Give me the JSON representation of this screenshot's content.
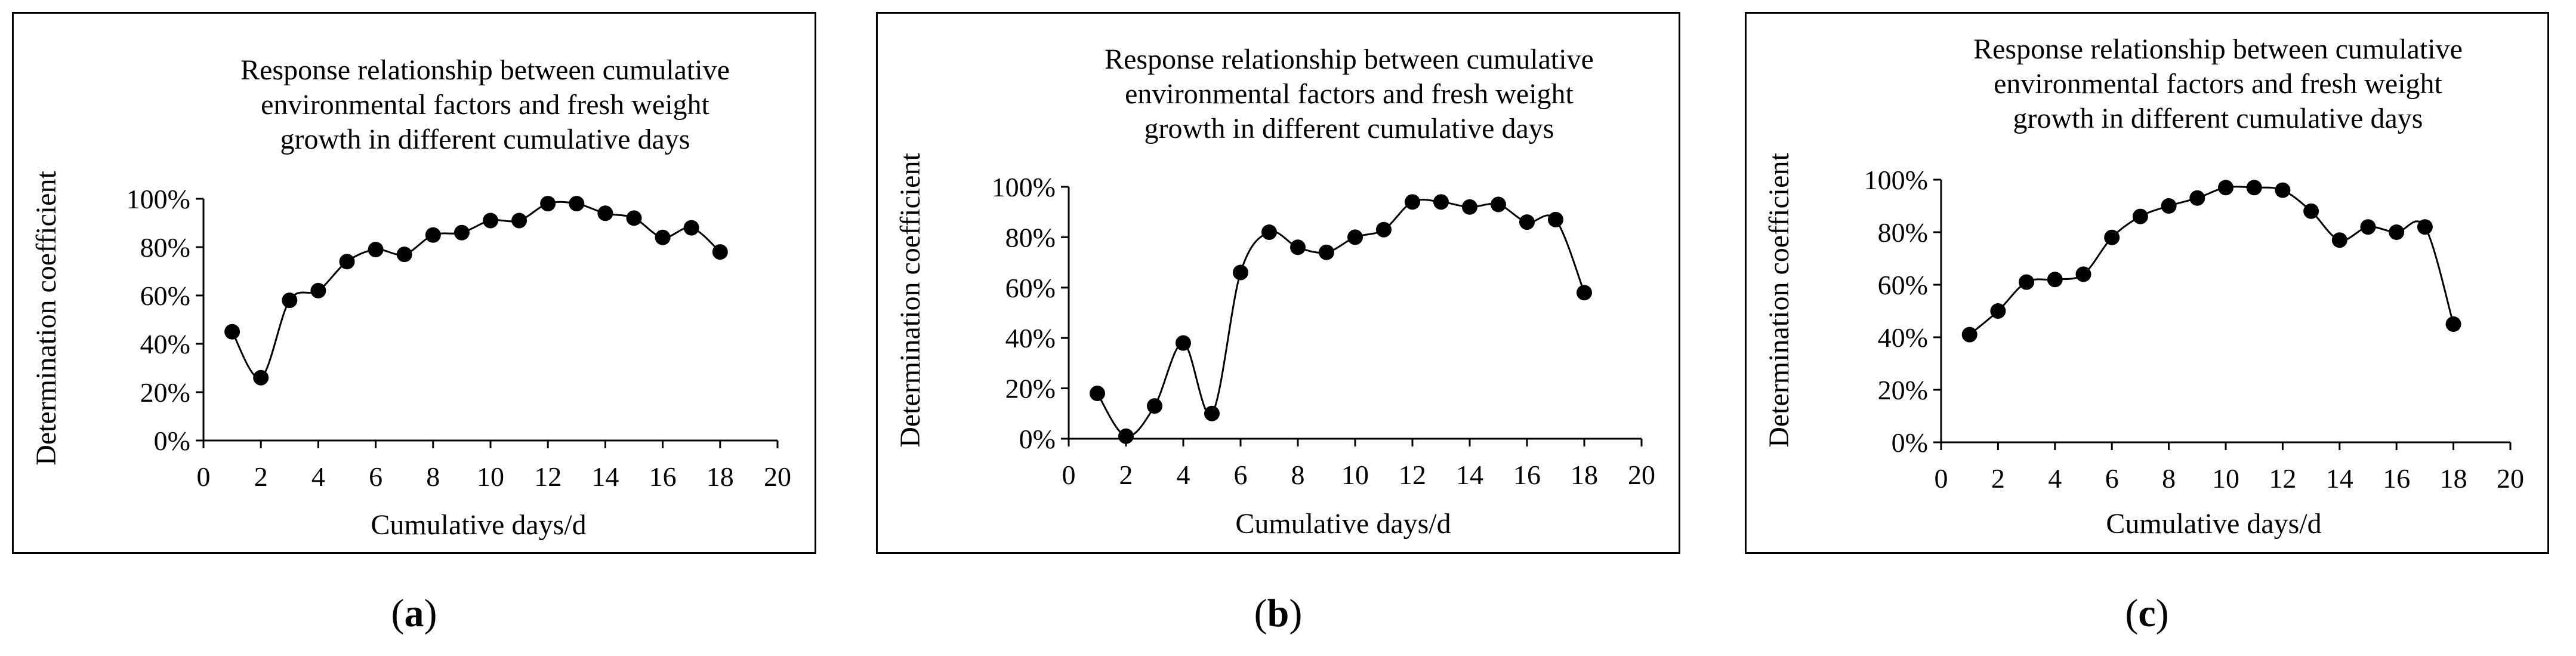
{
  "chart_data": [
    {
      "type": "line",
      "panel_label": "a",
      "title_lines": [
        "Response relationship  between cumulative",
        "environmental  factors  and fresh weight",
        "growth in different  cumulative  days"
      ],
      "xlabel": "Cumulative  days/d",
      "ylabel": "Determination  coefficient",
      "xlim": [
        0,
        20
      ],
      "ylim": [
        0,
        1
      ],
      "xticks": [
        "0",
        "2",
        "4",
        "6",
        "8",
        "10",
        "12",
        "14",
        "16",
        "18",
        "20"
      ],
      "yticks": [
        "0%",
        "20%",
        "40%",
        "60%",
        "80%",
        "100%"
      ],
      "x": [
        1,
        2,
        3,
        4,
        5,
        6,
        7,
        8,
        9,
        10,
        11,
        12,
        13,
        14,
        15,
        16,
        17,
        18
      ],
      "values": [
        0.45,
        0.26,
        0.58,
        0.62,
        0.74,
        0.79,
        0.77,
        0.85,
        0.86,
        0.91,
        0.91,
        0.98,
        0.98,
        0.94,
        0.92,
        0.84,
        0.88,
        0.78
      ]
    },
    {
      "type": "line",
      "panel_label": "b",
      "title_lines": [
        "Response relationship  between cumulative",
        "environmental  factors  and fresh weight",
        "growth in different  cumulative  days"
      ],
      "xlabel": "Cumulative  days/d",
      "ylabel": "Determination  coefficient",
      "xlim": [
        0,
        20
      ],
      "ylim": [
        0,
        1
      ],
      "xticks": [
        "0",
        "2",
        "4",
        "6",
        "8",
        "10",
        "12",
        "14",
        "16",
        "18",
        "20"
      ],
      "yticks": [
        "0%",
        "20%",
        "40%",
        "60%",
        "80%",
        "100%"
      ],
      "x": [
        1,
        2,
        3,
        4,
        5,
        6,
        7,
        8,
        9,
        10,
        11,
        12,
        13,
        14,
        15,
        16,
        17,
        18
      ],
      "values": [
        0.18,
        0.01,
        0.13,
        0.38,
        0.1,
        0.66,
        0.82,
        0.76,
        0.74,
        0.8,
        0.83,
        0.94,
        0.94,
        0.92,
        0.93,
        0.86,
        0.87,
        0.58
      ]
    },
    {
      "type": "line",
      "panel_label": "c",
      "title_lines": [
        "Response relationship  between cumulative",
        "environmental  factors  and fresh weight",
        "growth in different  cumulative  days"
      ],
      "xlabel": "Cumulative  days/d",
      "ylabel": "Determination  coefficient",
      "xlim": [
        0,
        20
      ],
      "ylim": [
        0,
        1
      ],
      "xticks": [
        "0",
        "2",
        "4",
        "6",
        "8",
        "10",
        "12",
        "14",
        "16",
        "18",
        "20"
      ],
      "yticks": [
        "0%",
        "20%",
        "40%",
        "60%",
        "80%",
        "100%"
      ],
      "x": [
        1,
        2,
        3,
        4,
        5,
        6,
        7,
        8,
        9,
        10,
        11,
        12,
        13,
        14,
        15,
        16,
        17,
        18
      ],
      "values": [
        0.41,
        0.5,
        0.61,
        0.62,
        0.64,
        0.78,
        0.86,
        0.9,
        0.93,
        0.97,
        0.97,
        0.96,
        0.88,
        0.77,
        0.82,
        0.8,
        0.82,
        0.45
      ]
    }
  ]
}
